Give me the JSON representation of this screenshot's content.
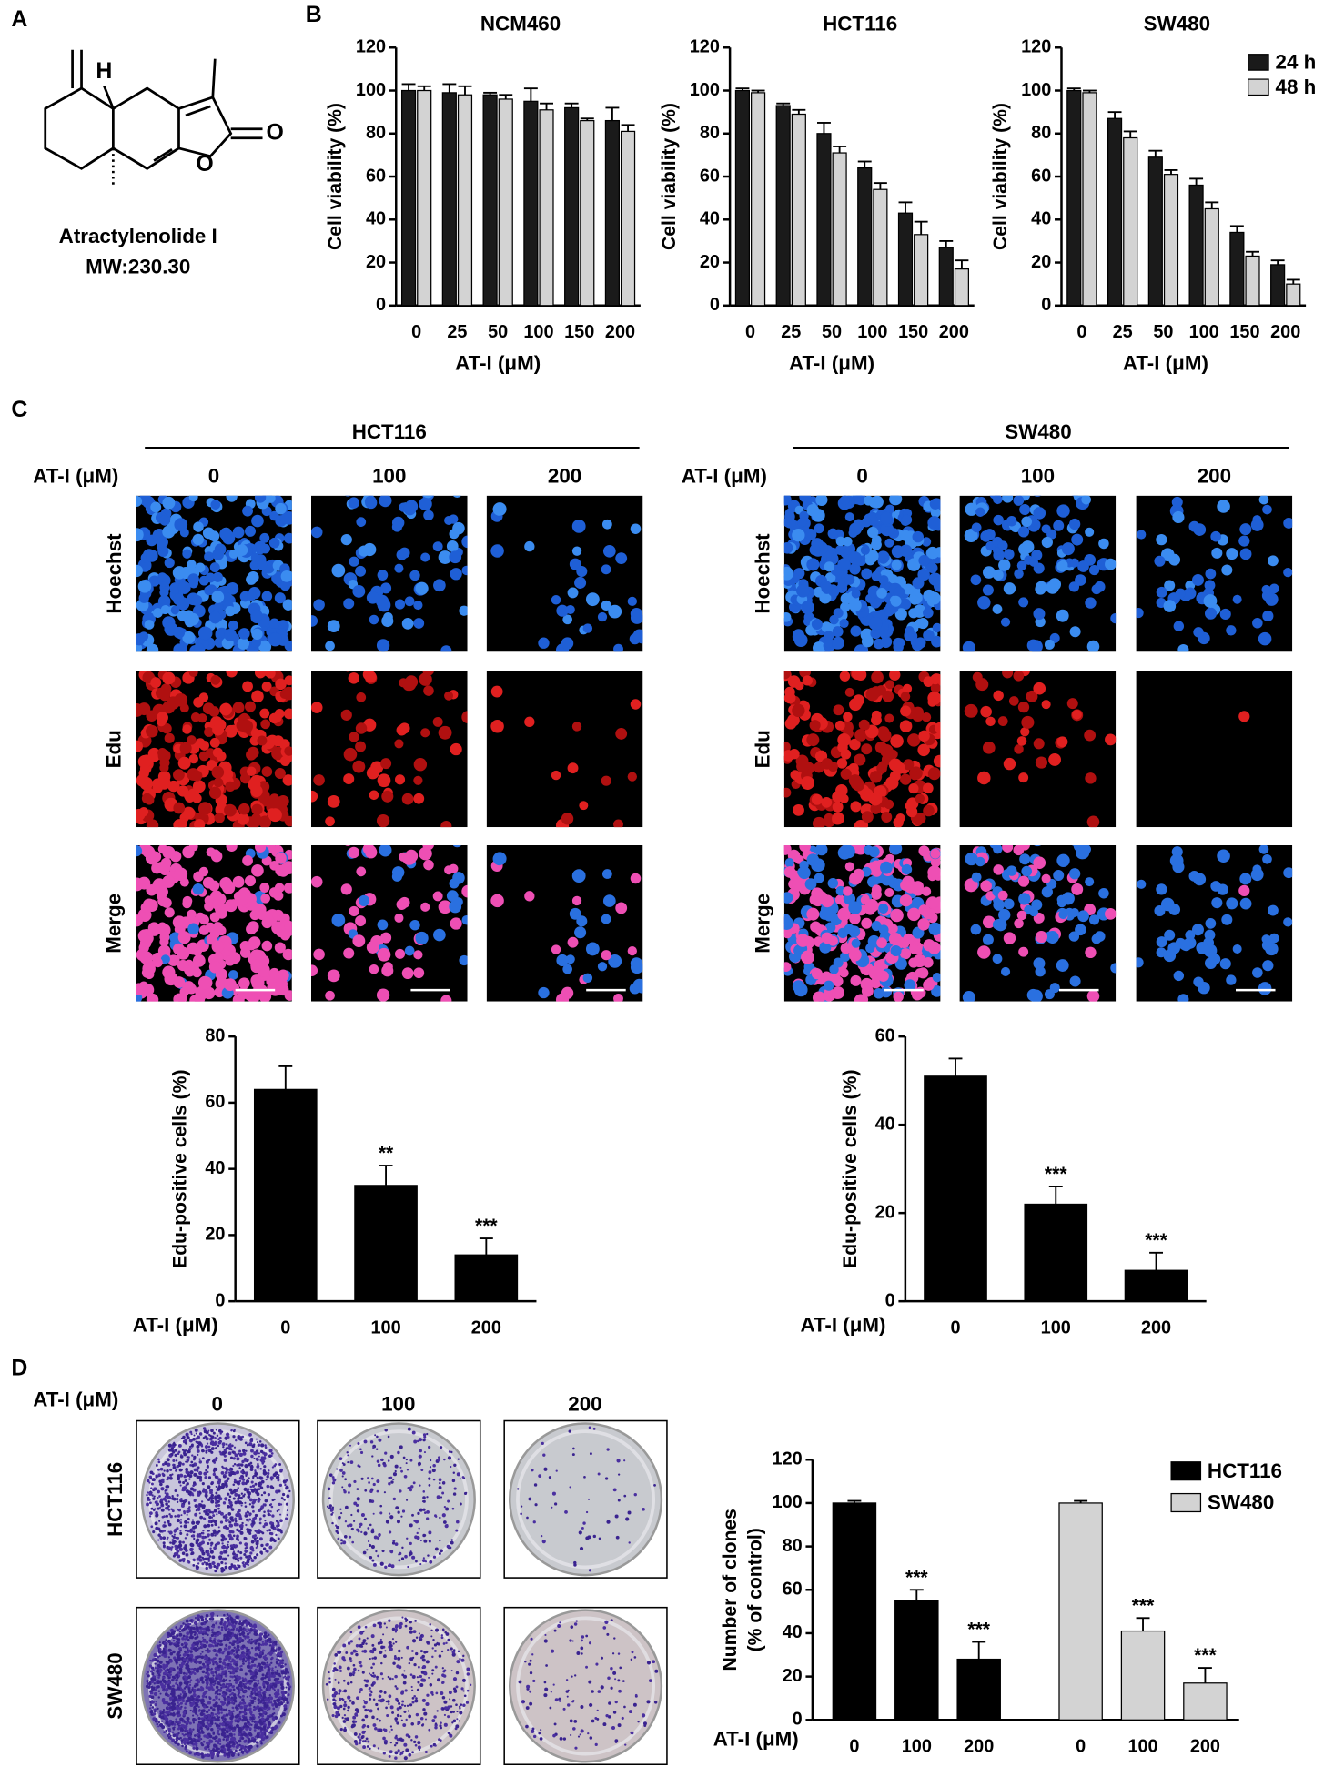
{
  "panel_labels": [
    "A",
    "B",
    "C",
    "D"
  ],
  "structure": {
    "name": "Atractylenolide I",
    "mw": "MW:230.30",
    "atoms": [
      "H",
      "O",
      "O"
    ]
  },
  "edu_assay": {
    "conc_label": "AT-I (μM)",
    "concentrations": [
      "0",
      "100",
      "200"
    ],
    "stains": [
      "Hoechst",
      "Edu",
      "Merge"
    ],
    "cell_lines": [
      "HCT116",
      "SW480"
    ]
  },
  "colony_assay": {
    "conc_label": "AT-I (μM)",
    "concentrations": [
      "0",
      "100",
      "200"
    ],
    "cell_lines": [
      "HCT116",
      "SW480"
    ]
  },
  "chart_data": [
    {
      "type": "bar",
      "title": "NCM460",
      "xlabel": "AT-I (μM)",
      "ylabel": "Cell viability (%)",
      "categories": [
        "0",
        "25",
        "50",
        "100",
        "150",
        "200"
      ],
      "series": [
        {
          "name": "24 h",
          "color": "#1a1a1a",
          "values": [
            100,
            99,
            98,
            95,
            92,
            86
          ],
          "errors": [
            3,
            4,
            1,
            6,
            2,
            6
          ]
        },
        {
          "name": "48 h",
          "color": "#d3d3d3",
          "values": [
            100,
            98,
            96,
            91,
            86,
            81
          ],
          "errors": [
            2,
            4,
            2,
            3,
            1,
            3
          ]
        }
      ],
      "ylim": [
        0,
        120
      ],
      "yticks": [
        0,
        20,
        40,
        60,
        80,
        100,
        120
      ],
      "legend": false
    },
    {
      "type": "bar",
      "title": "HCT116",
      "xlabel": "AT-I (μM)",
      "ylabel": "Cell viability (%)",
      "categories": [
        "0",
        "25",
        "50",
        "100",
        "150",
        "200"
      ],
      "series": [
        {
          "name": "24 h",
          "color": "#1a1a1a",
          "values": [
            100,
            93,
            80,
            64,
            43,
            27
          ],
          "errors": [
            1,
            1,
            5,
            3,
            5,
            3
          ]
        },
        {
          "name": "48 h",
          "color": "#d3d3d3",
          "values": [
            99,
            89,
            71,
            54,
            33,
            17
          ],
          "errors": [
            1,
            2,
            3,
            3,
            6,
            4
          ]
        }
      ],
      "ylim": [
        0,
        120
      ],
      "yticks": [
        0,
        20,
        40,
        60,
        80,
        100,
        120
      ],
      "legend": false
    },
    {
      "type": "bar",
      "title": "SW480",
      "xlabel": "AT-I (μM)",
      "ylabel": "Cell viability (%)",
      "categories": [
        "0",
        "25",
        "50",
        "100",
        "150",
        "200"
      ],
      "series": [
        {
          "name": "24 h",
          "color": "#1a1a1a",
          "values": [
            100,
            87,
            69,
            56,
            34,
            19
          ],
          "errors": [
            1,
            3,
            3,
            3,
            3,
            2
          ]
        },
        {
          "name": "48 h",
          "color": "#d3d3d3",
          "values": [
            99,
            78,
            61,
            45,
            23,
            10
          ],
          "errors": [
            1,
            3,
            2,
            3,
            2,
            2
          ]
        }
      ],
      "ylim": [
        0,
        120
      ],
      "yticks": [
        0,
        20,
        40,
        60,
        80,
        100,
        120
      ],
      "legend": "upper right"
    },
    {
      "type": "bar",
      "xlabel": "AT-I (μM)",
      "ylabel": "Edu-positive cells (%)",
      "categories": [
        "0",
        "100",
        "200"
      ],
      "values": [
        64,
        35,
        14
      ],
      "errors": [
        7,
        6,
        5
      ],
      "annotations": [
        null,
        "**",
        "***"
      ],
      "color": "#000000",
      "ylim": [
        0,
        80
      ],
      "yticks": [
        0,
        20,
        40,
        60,
        80
      ]
    },
    {
      "type": "bar",
      "xlabel": "AT-I (μM)",
      "ylabel": "Edu-positive cells (%)",
      "categories": [
        "0",
        "100",
        "200"
      ],
      "values": [
        51,
        22,
        7
      ],
      "errors": [
        4,
        4,
        4
      ],
      "annotations": [
        null,
        "***",
        "***"
      ],
      "color": "#000000",
      "ylim": [
        0,
        60
      ],
      "yticks": [
        0,
        20,
        40,
        60
      ]
    },
    {
      "type": "bar",
      "xlabel": "AT-I (μM)",
      "ylabel": [
        "Number of clones",
        "(% of control)"
      ],
      "categories": [
        "0",
        "100",
        "200"
      ],
      "series": [
        {
          "name": "HCT116",
          "color": "#000000",
          "values": [
            100,
            55,
            28
          ],
          "errors": [
            1,
            5,
            8
          ],
          "annotations": [
            null,
            "***",
            "***"
          ]
        },
        {
          "name": "SW480",
          "color": "#d3d3d3",
          "values": [
            100,
            41,
            17
          ],
          "errors": [
            1,
            6,
            7
          ],
          "annotations": [
            null,
            "***",
            "***"
          ]
        }
      ],
      "ylim": [
        0,
        120
      ],
      "yticks": [
        0,
        20,
        40,
        60,
        80,
        100,
        120
      ],
      "legend": "upper right"
    }
  ]
}
